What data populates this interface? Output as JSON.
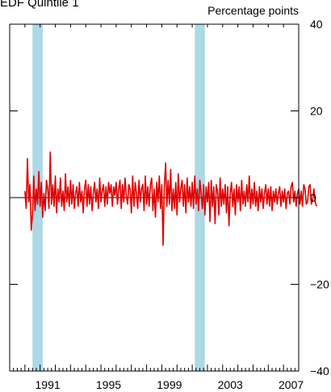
{
  "chart_data": {
    "type": "line",
    "title": "EDF Quintile 1",
    "units_label": "Percentage points",
    "colors": {
      "line": "#e00000",
      "recession": "#add8e6",
      "axis": "#000000"
    },
    "x_range": [
      1989.0,
      2008.0
    ],
    "ylim": [
      -40,
      40
    ],
    "y_ticks": [
      40,
      20,
      0,
      -20,
      -40
    ],
    "y_tick_labels": [
      "40",
      "20",
      "0",
      "−20",
      "−40"
    ],
    "x_tick_labels": [
      {
        "year": 1991,
        "label": "1991"
      },
      {
        "year": 1995,
        "label": "1995"
      },
      {
        "year": 1999,
        "label": "1999"
      },
      {
        "year": 2003,
        "label": "2003"
      },
      {
        "year": 2007,
        "label": "2007"
      }
    ],
    "recessions": [
      {
        "start": 1990.5,
        "end": 1991.17
      },
      {
        "start": 2001.17,
        "end": 2001.83
      }
    ],
    "zero_line": true,
    "series": [
      {
        "x_start": 1990.0,
        "step": 0.0833333,
        "values": [
          1.5,
          -2.5,
          9.0,
          -1.0,
          3.0,
          -7.5,
          -4.0,
          5.0,
          -3.0,
          2.0,
          -1.5,
          6.0,
          -2.0,
          3.5,
          -4.5,
          1.0,
          -3.0,
          4.0,
          2.0,
          -2.5,
          10.5,
          -1.5,
          3.0,
          -2.0,
          5.0,
          -3.5,
          2.0,
          -1.0,
          4.5,
          -2.0,
          1.5,
          -3.0,
          5.5,
          -1.0,
          2.5,
          -2.0,
          4.0,
          -1.5,
          3.0,
          -2.5,
          1.0,
          2.5,
          -2.0,
          3.5,
          -1.0,
          1.5,
          -3.5,
          2.0,
          4.0,
          -2.0,
          3.0,
          -1.5,
          2.5,
          -3.0,
          1.0,
          3.5,
          -1.0,
          2.0,
          -2.5,
          4.5,
          -1.0,
          1.5,
          3.0,
          -2.0,
          2.5,
          -1.5,
          3.5,
          1.0,
          3.0,
          -2.0,
          2.5,
          0.5,
          3.5,
          -1.5,
          2.0,
          4.0,
          -2.5,
          3.0,
          -1.0,
          4.5,
          0.5,
          -1.5,
          3.0,
          2.0,
          -3.5,
          5.0,
          -2.0,
          3.5,
          1.0,
          -2.5,
          4.0,
          -1.0,
          2.0,
          3.0,
          -3.0,
          5.0,
          -1.5,
          2.5,
          -2.0,
          3.0,
          4.5,
          -3.0,
          2.0,
          -4.5,
          3.5,
          -1.0,
          5.0,
          -2.5,
          3.0,
          -11.0,
          2.5,
          8.0,
          -2.0,
          4.0,
          -1.5,
          6.5,
          -3.0,
          2.0,
          -2.5,
          3.5,
          -4.0,
          5.5,
          -1.0,
          2.0,
          4.0,
          -2.0,
          3.0,
          -3.5,
          4.5,
          -1.0,
          2.5,
          -2.0,
          3.5,
          -2.5,
          5.0,
          -1.5,
          2.0,
          -3.0,
          4.0,
          1.0,
          -2.5,
          3.0,
          -4.0,
          2.5,
          -1.0,
          3.5,
          -5.5,
          4.0,
          -2.0,
          2.5,
          -6.0,
          3.0,
          1.5,
          -4.0,
          4.5,
          -2.0,
          2.0,
          -1.5,
          3.0,
          -3.5,
          2.5,
          -6.5,
          1.0,
          3.5,
          -2.0,
          2.0,
          -4.0,
          3.0,
          -1.0,
          2.5,
          -3.0,
          4.0,
          -1.5,
          1.5,
          -2.0,
          3.0,
          -1.0,
          5.0,
          -2.5,
          2.0,
          -1.5,
          3.5,
          -2.0,
          1.5,
          -3.0,
          2.5,
          -1.0,
          2.0,
          -2.5,
          1.0,
          3.0,
          -1.5,
          2.0,
          -2.0,
          2.5,
          -3.0,
          1.5,
          -1.0,
          2.0,
          -1.5,
          1.0,
          2.5,
          -2.0,
          1.5,
          -1.0,
          2.0,
          -2.5,
          1.0,
          1.5,
          -1.5,
          2.5,
          3.5,
          -1.0,
          1.5,
          -2.0,
          1.0,
          2.0,
          -1.5,
          1.5,
          -2.0,
          3.0,
          2.0,
          -1.5,
          -1.0,
          2.5,
          3.0,
          -1.5,
          -0.5,
          2.0,
          -1.0,
          -2.0
        ]
      }
    ]
  }
}
